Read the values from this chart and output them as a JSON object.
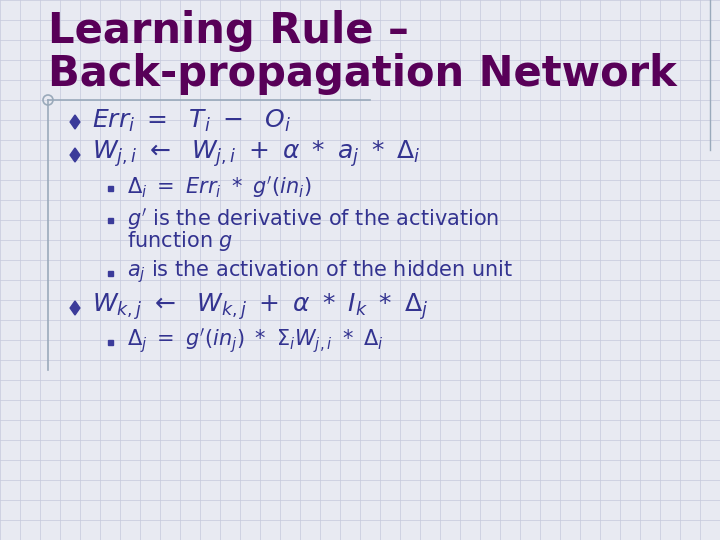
{
  "title_line1": "Learning Rule –",
  "title_line2": "Back-propagation Network",
  "title_color": "#580058",
  "bg_color": "#E8EAF2",
  "grid_color": "#C5C8DC",
  "diamond_color": "#3B3B9A",
  "text_color": "#333390",
  "deco_color": "#9AAABB"
}
